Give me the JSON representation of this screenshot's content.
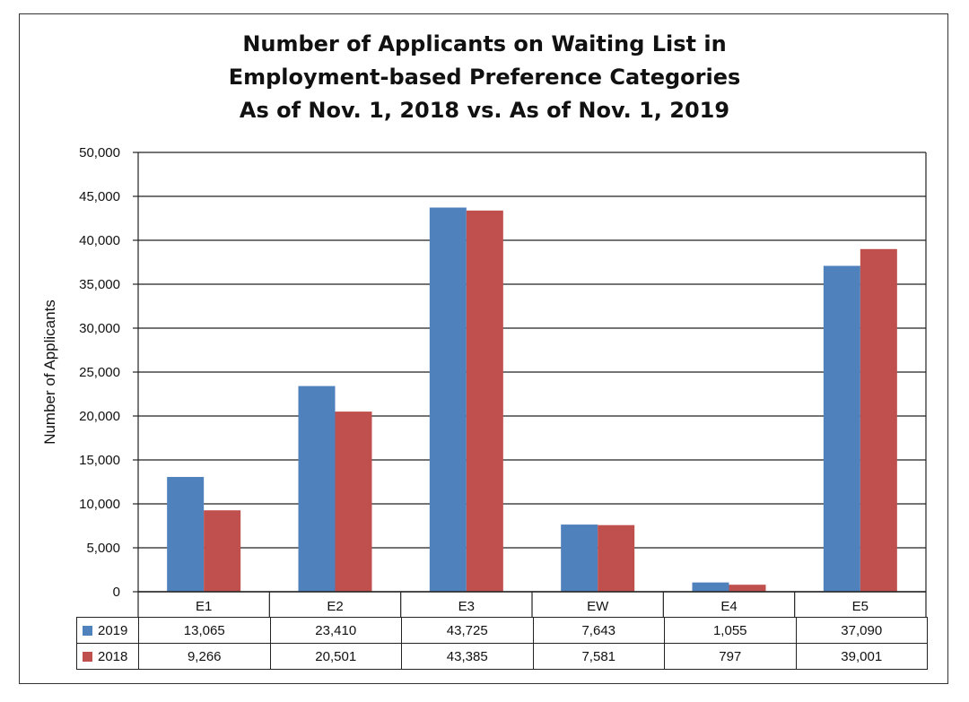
{
  "chart_data": {
    "type": "bar",
    "title": [
      "Number of Applicants on Waiting List in",
      "Employment-based Preference Categories",
      "As of Nov. 1, 2018 vs. As of Nov. 1, 2019"
    ],
    "ylabel": "Number of Applicants",
    "xlabel": "",
    "ylim": [
      0,
      50000
    ],
    "yticks": [
      "0",
      "5,000",
      "10,000",
      "15,000",
      "20,000",
      "25,000",
      "30,000",
      "35,000",
      "40,000",
      "45,000",
      "50,000"
    ],
    "categories": [
      "E1",
      "E2",
      "E3",
      "EW",
      "E4",
      "E5"
    ],
    "series": [
      {
        "name": "2019",
        "color": "#4F81BD",
        "values": [
          13065,
          23410,
          43725,
          7643,
          1055,
          37090
        ],
        "labels": [
          "13,065",
          "23,410",
          "43,725",
          "7,643",
          "1,055",
          "37,090"
        ]
      },
      {
        "name": "2018",
        "color": "#C0504D",
        "values": [
          9266,
          20501,
          43385,
          7581,
          797,
          39001
        ],
        "labels": [
          "9,266",
          "20,501",
          "43,385",
          "7,581",
          "797",
          "39,001"
        ]
      }
    ],
    "grid": true,
    "legend": "data table below chart"
  }
}
